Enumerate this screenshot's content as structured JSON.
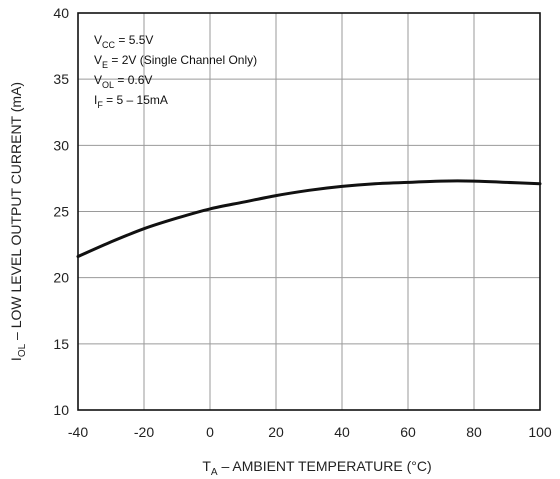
{
  "chart_data": {
    "type": "line",
    "xlabel": {
      "sym": "T",
      "sub": "A",
      "rest": " – AMBIENT TEMPERATURE (°C)"
    },
    "ylabel": {
      "sym": "I",
      "sub": "OL",
      "rest": " – LOW LEVEL OUTPUT CURRENT (mA)"
    },
    "xlim": [
      -40,
      100
    ],
    "ylim": [
      10,
      40
    ],
    "xticks": [
      "-40",
      "-20",
      "0",
      "20",
      "40",
      "60",
      "80",
      "100"
    ],
    "yticks": [
      "10",
      "15",
      "20",
      "25",
      "30",
      "35",
      "40"
    ],
    "grid": true,
    "conditions": [
      {
        "sym": "V",
        "sub": "CC",
        "rest": " = 5.5V"
      },
      {
        "sym": "V",
        "sub": "E",
        "rest": " = 2V (Single Channel Only)"
      },
      {
        "sym": "V",
        "sub": "OL",
        "rest": " = 0.6V"
      },
      {
        "sym": "I",
        "sub": "F",
        "rest": " = 5 – 15mA"
      }
    ],
    "series": [
      {
        "x": [
          -40,
          -30,
          -20,
          -10,
          0,
          10,
          20,
          30,
          40,
          50,
          60,
          70,
          80,
          90,
          100
        ],
        "y": [
          21.6,
          22.7,
          23.7,
          24.5,
          25.2,
          25.7,
          26.2,
          26.6,
          26.9,
          27.1,
          27.2,
          27.3,
          27.3,
          27.2,
          27.1
        ]
      }
    ]
  }
}
